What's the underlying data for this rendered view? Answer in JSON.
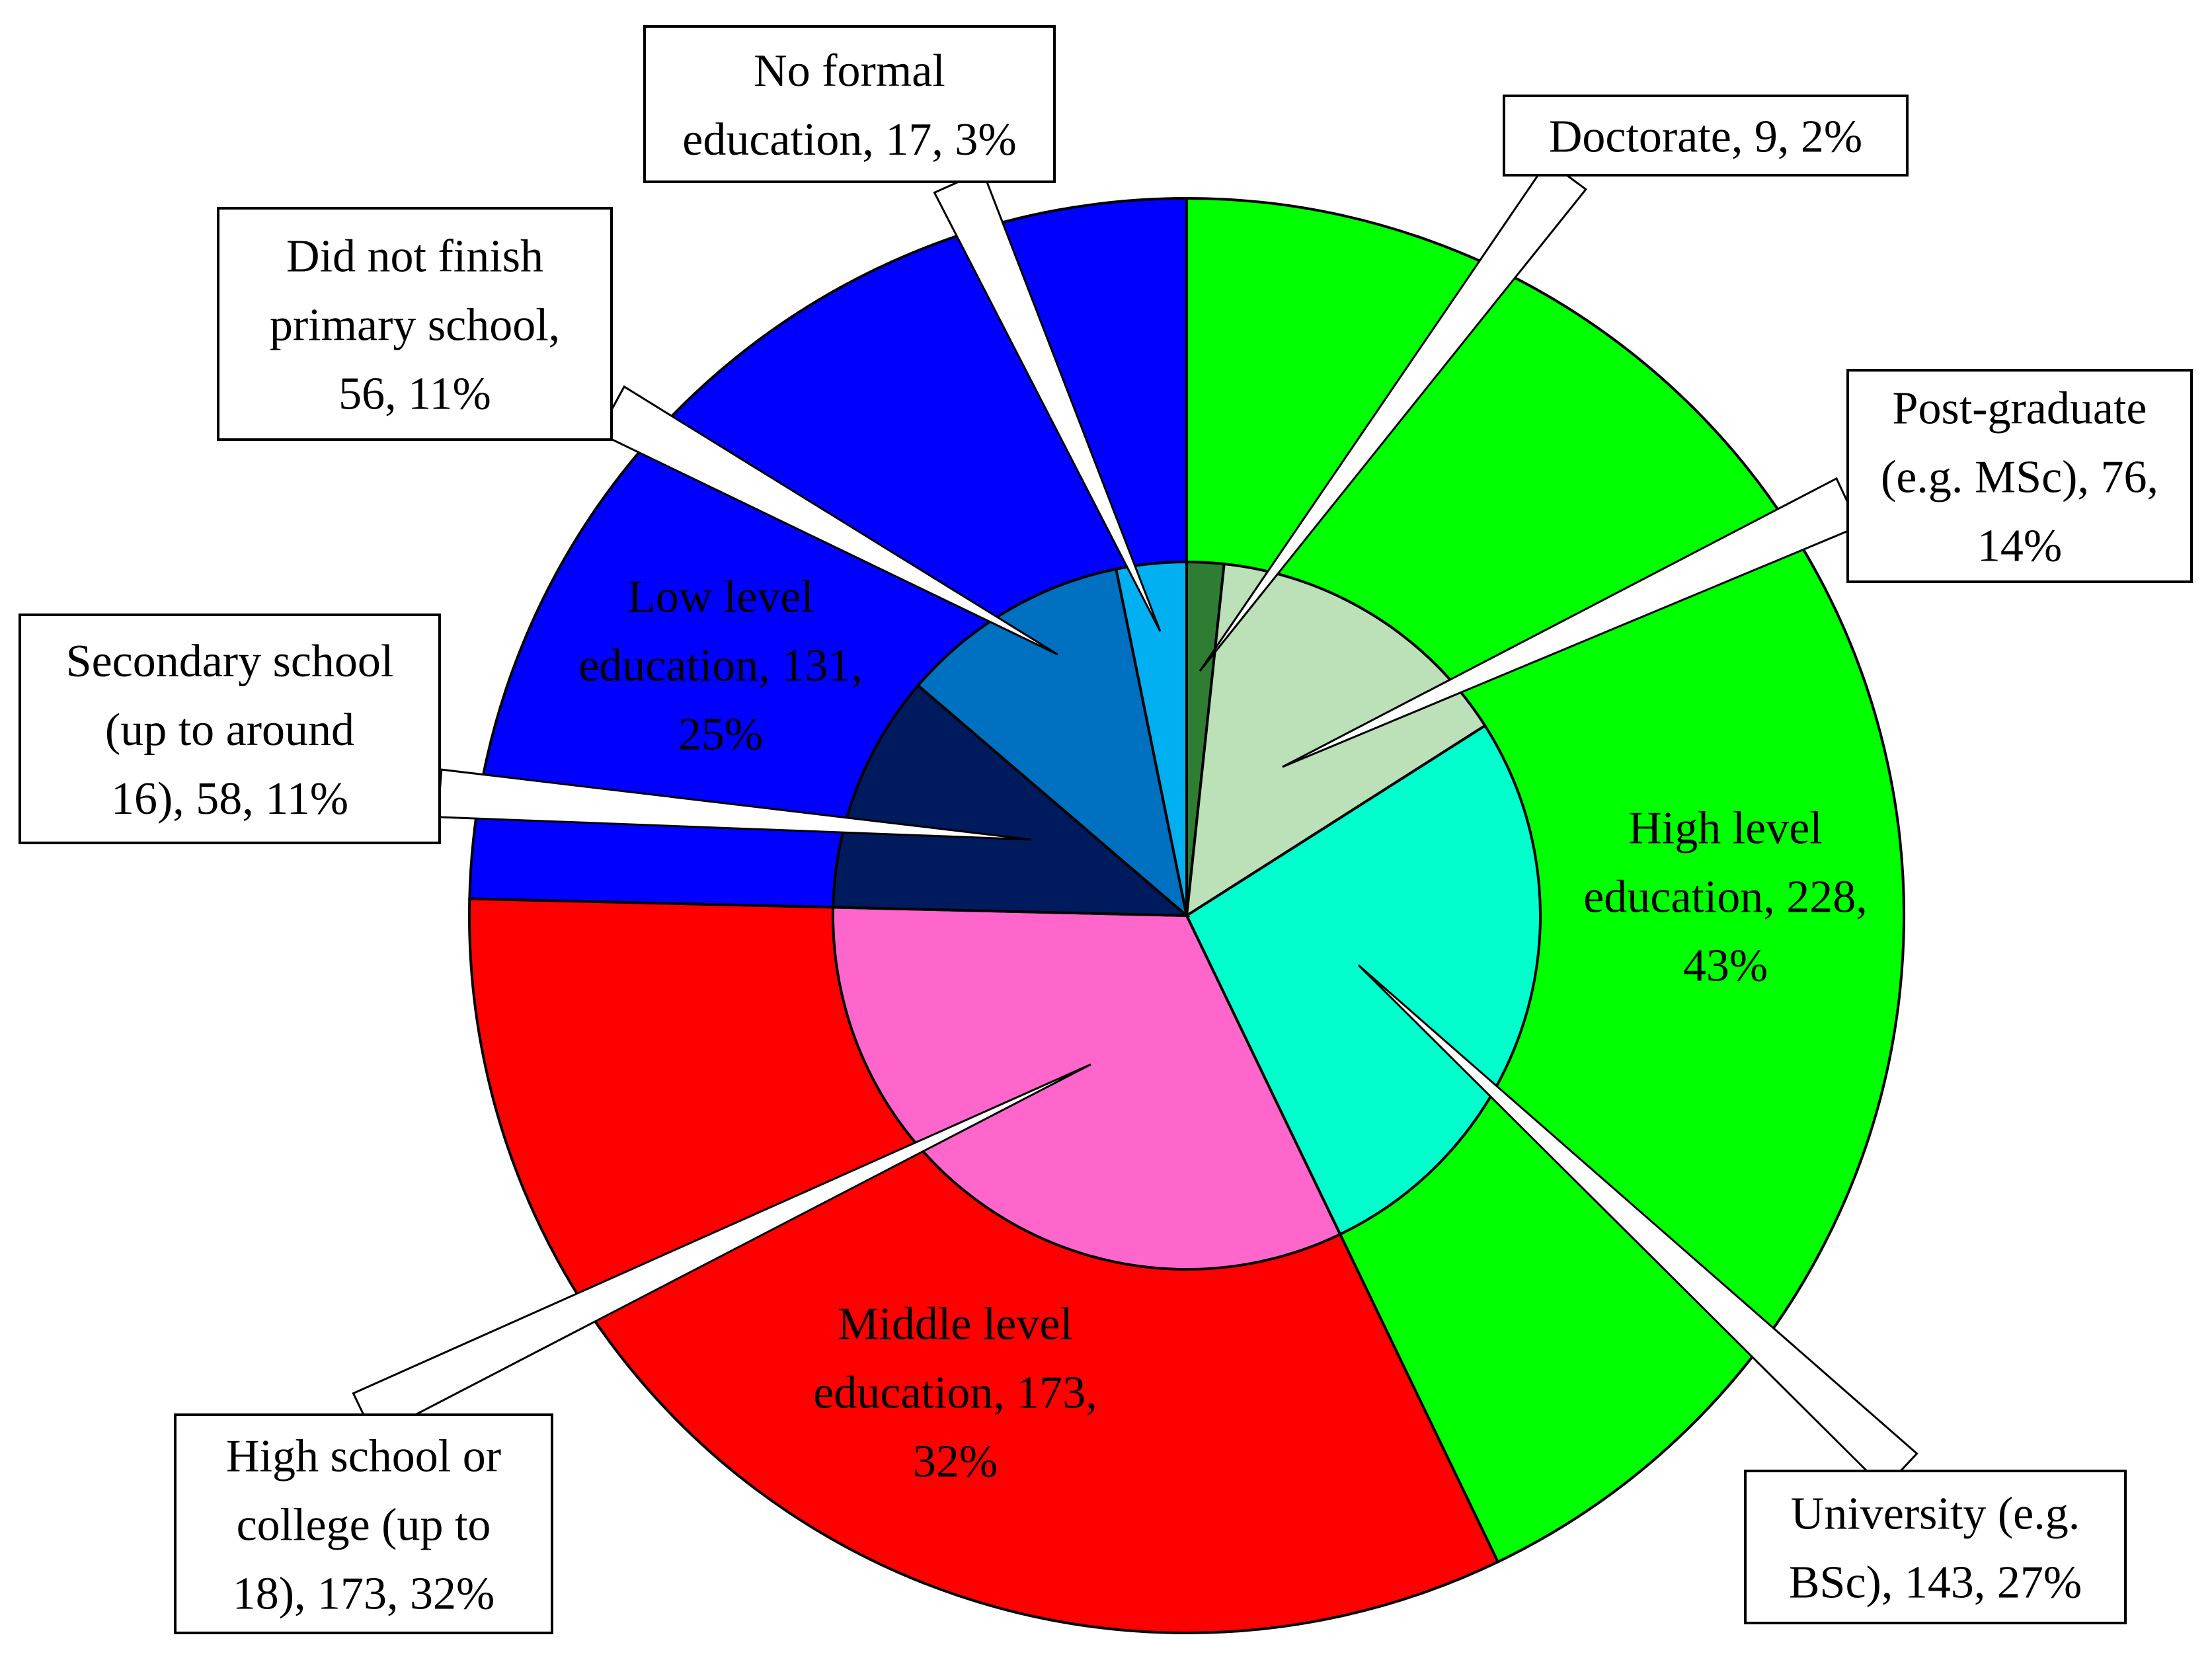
{
  "chart_data": {
    "type": "pie",
    "subtype": "nested-donut",
    "title": "",
    "outer": {
      "categories": [
        "High level education",
        "Middle level education",
        "Low level education"
      ],
      "values": [
        228,
        173,
        131
      ],
      "percent": [
        43,
        32,
        25
      ],
      "colors": [
        "#00FF00",
        "#FF0000",
        "#0000FF"
      ],
      "labels": [
        [
          "High level",
          "education, 228,",
          "43%"
        ],
        [
          "Middle level",
          "education, 173,",
          "32%"
        ],
        [
          "Low level",
          "education, 131,",
          "25%"
        ]
      ]
    },
    "inner": {
      "categories": [
        "Doctorate",
        "Post-graduate (e.g. MSc)",
        "University (e.g. BSc)",
        "High school or college (up to 18)",
        "Secondary school (up to around 16)",
        "Did not finish primary school",
        "No formal education"
      ],
      "values": [
        9,
        76,
        143,
        173,
        58,
        56,
        17
      ],
      "percent": [
        2,
        14,
        27,
        32,
        11,
        11,
        3
      ],
      "colors": [
        "#2E7D32",
        "#BCE0B8",
        "#00FFCC",
        "#FF66CC",
        "#001A5E",
        "#0070C0",
        "#00B0F0"
      ],
      "labels": [
        [
          "Doctorate, 9, 2%"
        ],
        [
          "Post-graduate",
          "(e.g. MSc), 76,",
          "14%"
        ],
        [
          "University (e.g.",
          "BSc), 143, 27%"
        ],
        [
          "High school or",
          "college (up to",
          "18), 173, 32%"
        ],
        [
          "Secondary school",
          "(up to around",
          "16), 58, 11%"
        ],
        [
          "Did not finish",
          "primary school,",
          "56, 11%"
        ],
        [
          "No formal",
          "education, 17, 3%"
        ]
      ]
    },
    "legend": "none",
    "grid": false
  }
}
